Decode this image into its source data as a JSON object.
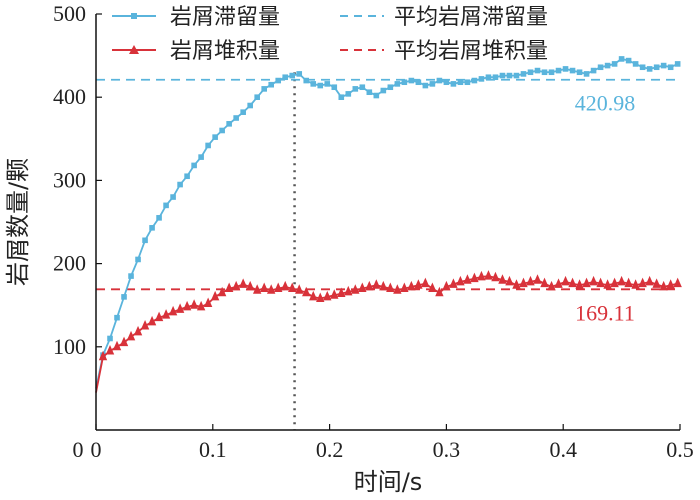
{
  "chart_data": {
    "type": "line",
    "xlabel": "时间/s",
    "ylabel": "岩屑数量/颗",
    "xlim": [
      0,
      0.5
    ],
    "ylim": [
      0,
      500
    ],
    "x_ticks": [
      "0",
      "0.1",
      "0.2",
      "0.3",
      "0.4",
      "0.5"
    ],
    "x_tick_values": [
      0,
      0.1,
      0.2,
      0.3,
      0.4,
      0.5
    ],
    "y_ticks": [
      "100",
      "200",
      "300",
      "400",
      "500"
    ],
    "y_tick_values": [
      100,
      200,
      300,
      400,
      500
    ],
    "vline_x": 0.17,
    "legend_position": "top",
    "series": [
      {
        "name": "岩屑滞留量",
        "color": "#5ab4dc",
        "marker": "square",
        "x": [
          0.0,
          0.006,
          0.012,
          0.018,
          0.024,
          0.03,
          0.036,
          0.042,
          0.048,
          0.054,
          0.06,
          0.066,
          0.072,
          0.078,
          0.084,
          0.09,
          0.096,
          0.102,
          0.108,
          0.114,
          0.12,
          0.126,
          0.132,
          0.138,
          0.144,
          0.15,
          0.156,
          0.162,
          0.168,
          0.174,
          0.18,
          0.186,
          0.192,
          0.198,
          0.204,
          0.21,
          0.216,
          0.222,
          0.228,
          0.234,
          0.24,
          0.246,
          0.252,
          0.258,
          0.264,
          0.27,
          0.276,
          0.282,
          0.288,
          0.294,
          0.3,
          0.306,
          0.312,
          0.318,
          0.324,
          0.33,
          0.336,
          0.342,
          0.348,
          0.354,
          0.36,
          0.366,
          0.372,
          0.378,
          0.384,
          0.39,
          0.396,
          0.402,
          0.408,
          0.414,
          0.42,
          0.426,
          0.432,
          0.438,
          0.444,
          0.45,
          0.456,
          0.462,
          0.468,
          0.474,
          0.48,
          0.486,
          0.492,
          0.498
        ],
        "y": [
          50,
          90,
          110,
          135,
          160,
          185,
          205,
          228,
          243,
          255,
          270,
          280,
          295,
          305,
          318,
          328,
          342,
          352,
          360,
          368,
          375,
          382,
          390,
          400,
          410,
          415,
          420,
          424,
          426,
          428,
          420,
          416,
          414,
          416,
          412,
          400,
          404,
          410,
          412,
          406,
          402,
          408,
          412,
          416,
          418,
          420,
          418,
          414,
          416,
          420,
          418,
          416,
          418,
          418,
          420,
          422,
          424,
          424,
          426,
          426,
          426,
          428,
          430,
          432,
          430,
          430,
          432,
          434,
          432,
          430,
          428,
          432,
          436,
          438,
          440,
          446,
          444,
          440,
          436,
          434,
          436,
          438,
          436,
          440
        ]
      },
      {
        "name": "岩屑堆积量",
        "color": "#d8323a",
        "marker": "triangle",
        "x": [
          0.0,
          0.006,
          0.012,
          0.018,
          0.024,
          0.03,
          0.036,
          0.042,
          0.048,
          0.054,
          0.06,
          0.066,
          0.072,
          0.078,
          0.084,
          0.09,
          0.096,
          0.102,
          0.108,
          0.114,
          0.12,
          0.126,
          0.132,
          0.138,
          0.144,
          0.15,
          0.156,
          0.162,
          0.168,
          0.174,
          0.18,
          0.186,
          0.192,
          0.198,
          0.204,
          0.21,
          0.216,
          0.222,
          0.228,
          0.234,
          0.24,
          0.246,
          0.252,
          0.258,
          0.264,
          0.27,
          0.276,
          0.282,
          0.288,
          0.294,
          0.3,
          0.306,
          0.312,
          0.318,
          0.324,
          0.33,
          0.336,
          0.342,
          0.348,
          0.354,
          0.36,
          0.366,
          0.372,
          0.378,
          0.384,
          0.39,
          0.396,
          0.402,
          0.408,
          0.414,
          0.42,
          0.426,
          0.432,
          0.438,
          0.444,
          0.45,
          0.456,
          0.462,
          0.468,
          0.474,
          0.48,
          0.486,
          0.492,
          0.498
        ],
        "y": [
          45,
          88,
          95,
          100,
          105,
          112,
          118,
          125,
          130,
          135,
          138,
          142,
          145,
          148,
          150,
          148,
          152,
          160,
          165,
          170,
          172,
          175,
          172,
          168,
          170,
          168,
          170,
          172,
          170,
          168,
          165,
          160,
          158,
          160,
          162,
          164,
          166,
          168,
          170,
          172,
          174,
          172,
          170,
          168,
          170,
          172,
          174,
          176,
          170,
          165,
          172,
          175,
          178,
          180,
          182,
          184,
          185,
          183,
          180,
          178,
          174,
          176,
          178,
          180,
          176,
          172,
          175,
          178,
          176,
          174,
          176,
          178,
          176,
          174,
          176,
          178,
          176,
          174,
          176,
          178,
          175,
          172,
          174,
          176
        ]
      }
    ],
    "reference_lines": [
      {
        "name": "平均岩屑滞留量",
        "value": 420.98,
        "label": "420.98",
        "color": "#5ab4dc"
      },
      {
        "name": "平均岩屑堆积量",
        "value": 169.11,
        "label": "169.11",
        "color": "#d8323a"
      }
    ]
  }
}
